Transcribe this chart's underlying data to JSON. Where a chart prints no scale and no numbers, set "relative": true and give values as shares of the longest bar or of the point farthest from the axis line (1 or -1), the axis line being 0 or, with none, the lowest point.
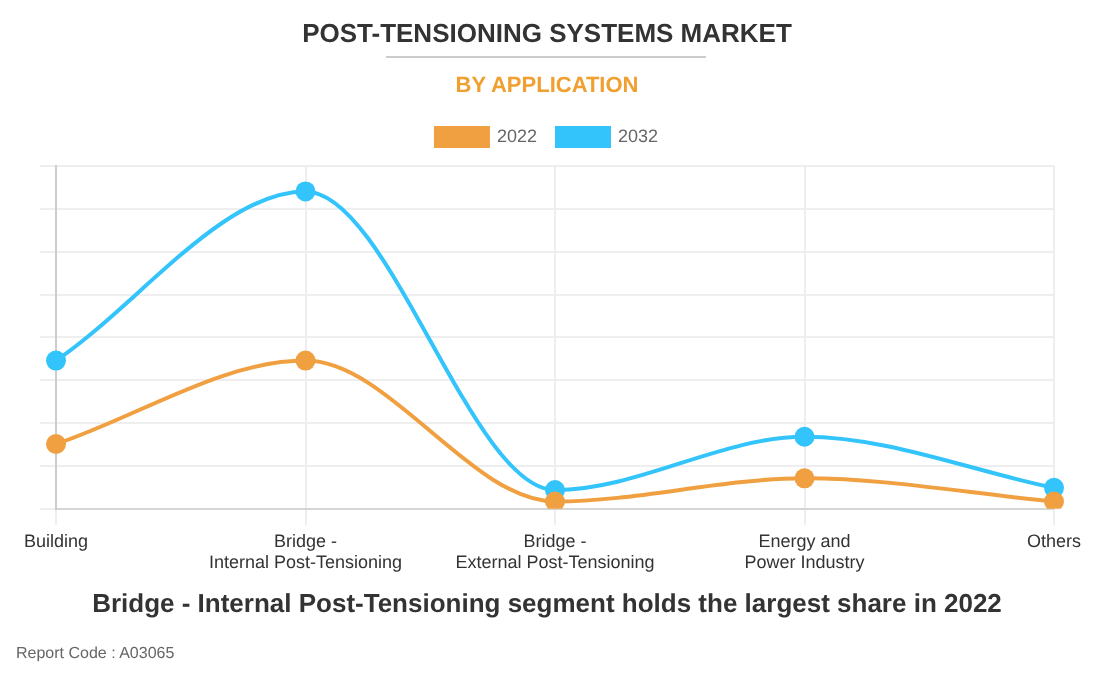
{
  "chart_data": {
    "type": "line",
    "title": "POST-TENSIONING SYSTEMS MARKET",
    "subtitle": "BY APPLICATION",
    "categories": [
      "Building",
      "Bridge -\nInternal Post-Tensioning",
      "Bridge -\nExternal Post-Tensioning",
      "Energy and\nPower Industry",
      "Others"
    ],
    "series": [
      {
        "name": "2022",
        "color": "#f0a040",
        "values": [
          0.204,
          0.467,
          0.023,
          0.096,
          0.023
        ]
      },
      {
        "name": "2032",
        "color": "#33c4fc",
        "values": [
          0.467,
          1,
          0.059,
          0.227,
          0.066
        ]
      }
    ],
    "relative": true,
    "grid": true,
    "legend": "top",
    "marker": "circle",
    "line_style": "solid",
    "annotations": [
      "Bridge - Internal Post-Tensioning segment holds the largest share in 2022",
      "Report Code : A03065"
    ]
  }
}
